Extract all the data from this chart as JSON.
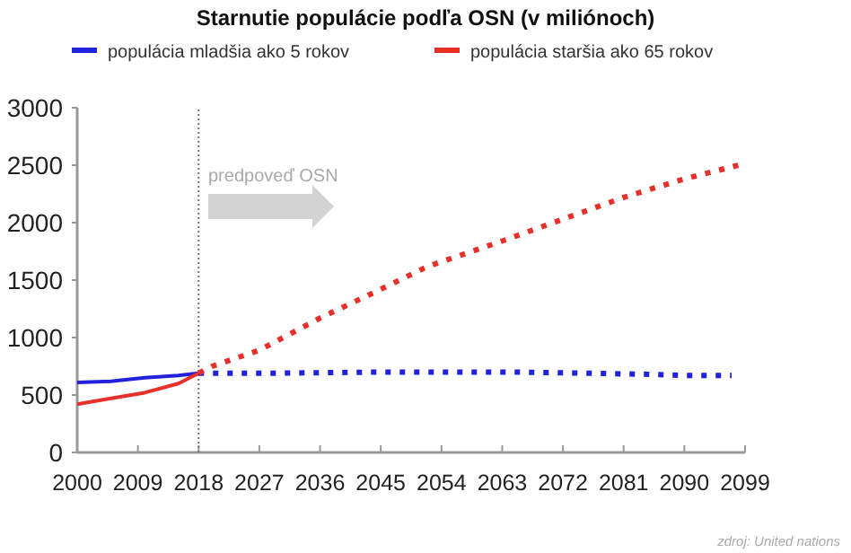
{
  "chart_data": {
    "type": "line",
    "title": "Starnutie populácie podľa OSN (v miliónoch)",
    "xlim": [
      2000,
      2099
    ],
    "xticks": [
      2000,
      2009,
      2018,
      2027,
      2036,
      2045,
      2054,
      2063,
      2072,
      2081,
      2090,
      2099
    ],
    "ylim": [
      0,
      3000
    ],
    "yticks": [
      0,
      500,
      1000,
      1500,
      2000,
      2500,
      3000
    ],
    "grid": false,
    "legend": "top",
    "series": [
      {
        "name": "populácia mladšia ako 5 rokov",
        "color": "#2222dd",
        "line_style": "solid",
        "x": [
          2000,
          2005,
          2010,
          2015,
          2018
        ],
        "values": [
          610,
          620,
          650,
          670,
          690
        ]
      },
      {
        "name": "populácia staršia ako 65 rokov",
        "color": "#e8302a",
        "line_style": "solid",
        "x": [
          2000,
          2005,
          2010,
          2015,
          2018
        ],
        "values": [
          420,
          470,
          520,
          600,
          690
        ]
      },
      {
        "color": "#2222dd",
        "line_style": "dotted",
        "x": [
          2018,
          2030,
          2045,
          2055,
          2065,
          2075,
          2085,
          2090,
          2097
        ],
        "values": [
          690,
          690,
          700,
          700,
          700,
          690,
          680,
          670,
          670
        ]
      },
      {
        "color": "#e8302a",
        "line_style": "dotted",
        "x": [
          2018,
          2020,
          2027,
          2036,
          2045,
          2052,
          2063,
          2072,
          2081,
          2090,
          2098
        ],
        "values": [
          690,
          750,
          890,
          1170,
          1420,
          1620,
          1840,
          2030,
          2220,
          2380,
          2500
        ]
      }
    ],
    "ref_lines": [
      {
        "axis": "x",
        "value": 2018,
        "color": "#777777",
        "line_style": "dotted"
      }
    ],
    "annotations": [
      "predpoveď OSN",
      "zdroj: United nations"
    ]
  }
}
